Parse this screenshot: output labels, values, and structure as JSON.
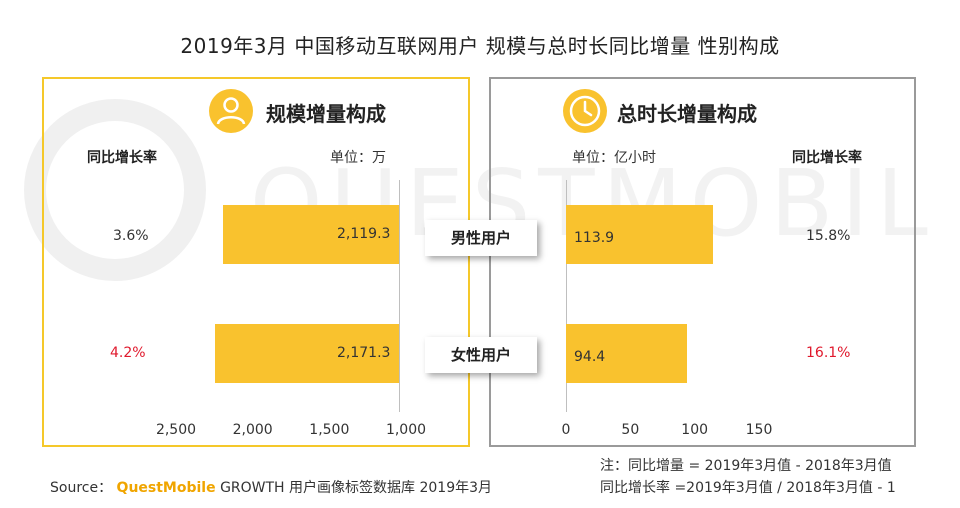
{
  "title": "2019年3月 中国移动互联网用户 规模与总时长同比增量 性别构成",
  "watermark": "QUESTMOBILE",
  "colors": {
    "bar": "#F9C22E",
    "accent_border": "#F5C82A",
    "gray_border": "#9a9a9a",
    "red_rate": "#E0192D"
  },
  "categories": [
    "男性用户",
    "女性用户"
  ],
  "left_panel": {
    "heading": "规模增量构成",
    "icon": "user-icon",
    "rate_header": "同比增长率",
    "unit": "单位：万",
    "rates": [
      "3.6%",
      "4.2%"
    ],
    "value_labels": [
      "2,119.3",
      "2,171.3"
    ],
    "ticks": [
      "2,500",
      "2,000",
      "1,500",
      "1,000"
    ]
  },
  "right_panel": {
    "heading": "总时长增量构成",
    "icon": "clock-icon",
    "unit": "单位：亿小时",
    "rate_header": "同比增长率",
    "rates": [
      "15.8%",
      "16.1%"
    ],
    "value_labels": [
      "113.9",
      "94.4"
    ],
    "ticks": [
      "0",
      "50",
      "100",
      "150"
    ]
  },
  "chart_data": [
    {
      "type": "bar",
      "orientation": "horizontal",
      "title": "规模增量构成",
      "unit": "单位：万",
      "categories": [
        "男性用户",
        "女性用户"
      ],
      "values": [
        2119.3,
        2171.3
      ],
      "growth_rates": [
        "3.6%",
        "4.2%"
      ],
      "xlim": [
        2500,
        1000
      ],
      "x_ticks": [
        2500,
        2000,
        1500,
        1000
      ]
    },
    {
      "type": "bar",
      "orientation": "horizontal",
      "title": "总时长增量构成",
      "unit": "单位：亿小时",
      "categories": [
        "男性用户",
        "女性用户"
      ],
      "values": [
        113.9,
        94.4
      ],
      "growth_rates": [
        "15.8%",
        "16.1%"
      ],
      "xlim": [
        0,
        150
      ],
      "x_ticks": [
        0,
        50,
        100,
        150
      ]
    }
  ],
  "notes": {
    "line1": "注：同比增量 = 2019年3月值 - 2018年3月值",
    "line2": "同比增长率 =2019年3月值 / 2018年3月值 - 1"
  },
  "source": {
    "prefix": "Source：",
    "brand": "QuestMobile",
    "rest": "GROWTH 用户画像标签数据库 2019年3月"
  }
}
